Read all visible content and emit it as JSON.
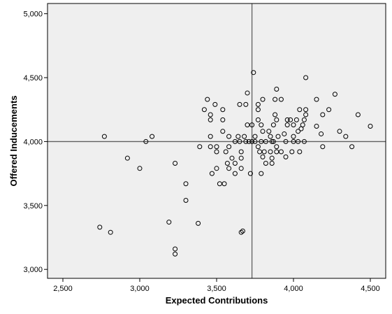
{
  "colors": {
    "background": "#ffffff",
    "plot_area": "#efefef",
    "frame": "#000000",
    "points": "#000000",
    "reference_lines": "#606060"
  },
  "chart_data": {
    "type": "scatter",
    "xlabel": "Expected Contributions",
    "ylabel": "Offered Inducements",
    "xlim": [
      2400,
      4600
    ],
    "ylim": [
      2930,
      5080
    ],
    "x_ticks": [
      2500,
      3000,
      3500,
      4000,
      4500
    ],
    "y_ticks": [
      3000,
      3500,
      4000,
      4500,
      5000
    ],
    "x_tick_labels": [
      "2,500",
      "3,000",
      "3,500",
      "4,000",
      "4,500"
    ],
    "y_tick_labels": [
      "3,000",
      "3,500",
      "4,000",
      "4,500",
      "5,000"
    ],
    "reference_lines": {
      "x": 3730,
      "y": 4000
    },
    "grid": false,
    "marker": "hollow-circle",
    "points": [
      [
        2770,
        4040
      ],
      [
        2740,
        3330
      ],
      [
        2810,
        3290
      ],
      [
        2920,
        3870
      ],
      [
        3000,
        3790
      ],
      [
        3040,
        4000
      ],
      [
        3080,
        4040
      ],
      [
        3190,
        3370
      ],
      [
        3230,
        3830
      ],
      [
        3230,
        3160
      ],
      [
        3230,
        3120
      ],
      [
        3300,
        3670
      ],
      [
        3300,
        3540
      ],
      [
        3380,
        3360
      ],
      [
        3390,
        3960
      ],
      [
        3420,
        4250
      ],
      [
        3440,
        4330
      ],
      [
        3460,
        4210
      ],
      [
        3460,
        4170
      ],
      [
        3460,
        4040
      ],
      [
        3460,
        3960
      ],
      [
        3470,
        3750
      ],
      [
        3490,
        4290
      ],
      [
        3500,
        3960
      ],
      [
        3500,
        3920
      ],
      [
        3500,
        3790
      ],
      [
        3520,
        3670
      ],
      [
        3540,
        4250
      ],
      [
        3540,
        4170
      ],
      [
        3540,
        4080
      ],
      [
        3550,
        3670
      ],
      [
        3560,
        3920
      ],
      [
        3570,
        3830
      ],
      [
        3580,
        3960
      ],
      [
        3580,
        3790
      ],
      [
        3580,
        4040
      ],
      [
        3600,
        3870
      ],
      [
        3620,
        4000
      ],
      [
        3620,
        3830
      ],
      [
        3620,
        3750
      ],
      [
        3640,
        4040
      ],
      [
        3650,
        4290
      ],
      [
        3650,
        4000
      ],
      [
        3660,
        3920
      ],
      [
        3660,
        3870
      ],
      [
        3660,
        3790
      ],
      [
        3660,
        3290
      ],
      [
        3670,
        3300
      ],
      [
        3680,
        4040
      ],
      [
        3690,
        4290
      ],
      [
        3690,
        4000
      ],
      [
        3700,
        4380
      ],
      [
        3700,
        4130
      ],
      [
        3710,
        4000
      ],
      [
        3720,
        3750
      ],
      [
        3730,
        4130
      ],
      [
        3730,
        4000
      ],
      [
        3740,
        4540
      ],
      [
        3750,
        4040
      ],
      [
        3750,
        4000
      ],
      [
        3770,
        4250
      ],
      [
        3770,
        4290
      ],
      [
        3770,
        4170
      ],
      [
        3770,
        3960
      ],
      [
        3780,
        3920
      ],
      [
        3790,
        4130
      ],
      [
        3790,
        4000
      ],
      [
        3790,
        3750
      ],
      [
        3800,
        4330
      ],
      [
        3800,
        4080
      ],
      [
        3800,
        3880
      ],
      [
        3810,
        3920
      ],
      [
        3820,
        4000
      ],
      [
        3820,
        3830
      ],
      [
        3840,
        4080
      ],
      [
        3850,
        4040
      ],
      [
        3850,
        3920
      ],
      [
        3860,
        4000
      ],
      [
        3860,
        3870
      ],
      [
        3860,
        3830
      ],
      [
        3870,
        4130
      ],
      [
        3870,
        4000
      ],
      [
        3880,
        4330
      ],
      [
        3880,
        4210
      ],
      [
        3890,
        4410
      ],
      [
        3890,
        4170
      ],
      [
        3890,
        3960
      ],
      [
        3890,
        3920
      ],
      [
        3900,
        4040
      ],
      [
        3920,
        4330
      ],
      [
        3920,
        3920
      ],
      [
        3940,
        4060
      ],
      [
        3950,
        3880
      ],
      [
        3950,
        4000
      ],
      [
        3960,
        4130
      ],
      [
        3960,
        4170
      ],
      [
        3980,
        4170
      ],
      [
        3990,
        3920
      ],
      [
        4000,
        4130
      ],
      [
        4000,
        4040
      ],
      [
        4000,
        4000
      ],
      [
        4020,
        4170
      ],
      [
        4030,
        4000
      ],
      [
        4030,
        4080
      ],
      [
        4040,
        4250
      ],
      [
        4040,
        3920
      ],
      [
        4050,
        4100
      ],
      [
        4060,
        4130
      ],
      [
        4070,
        4170
      ],
      [
        4070,
        4000
      ],
      [
        4080,
        4500
      ],
      [
        4080,
        4250
      ],
      [
        4080,
        4210
      ],
      [
        4150,
        4330
      ],
      [
        4150,
        4120
      ],
      [
        4180,
        4060
      ],
      [
        4190,
        4210
      ],
      [
        4190,
        3960
      ],
      [
        4230,
        4250
      ],
      [
        4270,
        4370
      ],
      [
        4300,
        4080
      ],
      [
        4340,
        4040
      ],
      [
        4380,
        3960
      ],
      [
        4420,
        4210
      ],
      [
        4500,
        4120
      ]
    ]
  }
}
